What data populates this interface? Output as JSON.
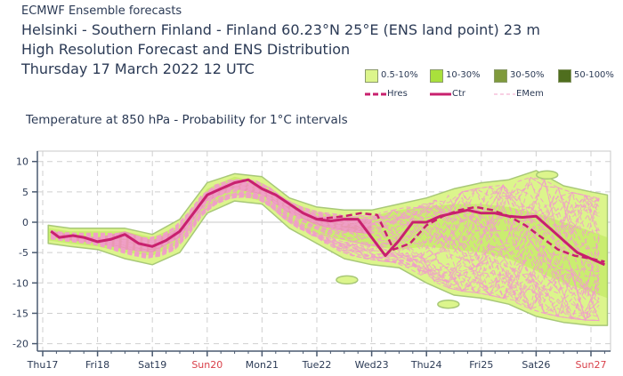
{
  "header": {
    "line0": "ECMWF Ensemble forecasts",
    "line1": "Helsinki - Southern Finland - Finland 60.23°N 25°E (ENS land point) 23 m",
    "line2": "High Resolution Forecast and ENS Distribution",
    "line3": "Thursday 17 March 2022 12 UTC"
  },
  "legend": {
    "bands": [
      {
        "label": "0.5-10%",
        "color": "#dcf58c"
      },
      {
        "label": "10-30%",
        "color": "#a9e03c"
      },
      {
        "label": "30-50%",
        "color": "#7f9a3c"
      },
      {
        "label": "50-100%",
        "color": "#4f6e1e"
      }
    ],
    "lines": [
      {
        "label": "Hres",
        "color": "#c8206e",
        "style": "dashed-thick"
      },
      {
        "label": "Ctr",
        "color": "#c8206e",
        "style": "solid-thick"
      },
      {
        "label": "EMem",
        "color": "#f0a0c8",
        "style": "dashed-thin"
      }
    ]
  },
  "chart_data": {
    "type": "line",
    "title": "Temperature at 850 hPa - Probability for 1°C intervals",
    "xlabel": "",
    "ylabel": "",
    "ylim": [
      -20,
      10
    ],
    "yticks": [
      10,
      5,
      0,
      -5,
      -10,
      -15,
      -20
    ],
    "xlim_days": [
      0,
      10.3
    ],
    "x_tick_labels": [
      {
        "label": "Thu17",
        "day": 0,
        "weekend": false
      },
      {
        "label": "Fri18",
        "day": 1,
        "weekend": false
      },
      {
        "label": "Sat19",
        "day": 2,
        "weekend": false
      },
      {
        "label": "Sun20",
        "day": 3,
        "weekend": true
      },
      {
        "label": "Mon21",
        "day": 4,
        "weekend": false
      },
      {
        "label": "Tue22",
        "day": 5,
        "weekend": false
      },
      {
        "label": "Wed23",
        "day": 6,
        "weekend": false
      },
      {
        "label": "Thu24",
        "day": 7,
        "weekend": false
      },
      {
        "label": "Fri25",
        "day": 8,
        "weekend": false
      },
      {
        "label": "Sat26",
        "day": 9,
        "weekend": false
      },
      {
        "label": "Sun27",
        "day": 10,
        "weekend": true
      }
    ],
    "grid": true,
    "colors": {
      "weekday": "#2b3a55",
      "weekend": "#d9404a",
      "accent": "#c8206e",
      "emem": "#f0a0c8",
      "band_light": "#dcf58c",
      "band_mid": "#a9e03c",
      "band_core": "#ee88c0"
    },
    "series": [
      {
        "name": "Ctr",
        "x_days": [
          0.15,
          0.3,
          0.55,
          0.75,
          1.0,
          1.25,
          1.5,
          1.75,
          2.0,
          2.25,
          2.5,
          2.75,
          3.0,
          3.25,
          3.5,
          3.75,
          4.0,
          4.25,
          4.5,
          4.75,
          5.0,
          5.25,
          5.5,
          5.75,
          6.0,
          6.25,
          6.5,
          6.75,
          7.0,
          7.25,
          7.5,
          7.75,
          8.0,
          8.25,
          8.5,
          8.75,
          9.0,
          9.25,
          9.5,
          9.75,
          10.0,
          10.25
        ],
        "values": [
          -1.5,
          -2.5,
          -2.2,
          -2.5,
          -3.2,
          -2.8,
          -2.0,
          -3.5,
          -4.0,
          -3.0,
          -1.5,
          1.5,
          4.5,
          5.5,
          6.5,
          7.0,
          5.5,
          4.5,
          3.0,
          1.5,
          0.5,
          0.2,
          0.5,
          0.5,
          -2.5,
          -5.5,
          -3.0,
          0.0,
          0.0,
          1.0,
          1.5,
          2.0,
          1.5,
          1.5,
          1.0,
          0.8,
          1.0,
          -1.0,
          -3.0,
          -5.0,
          -6.0,
          -7.0
        ]
      },
      {
        "name": "Hres",
        "x_days": [
          5.0,
          5.5,
          5.8,
          6.1,
          6.4,
          6.7,
          7.0,
          7.3,
          7.6,
          7.9,
          8.2,
          8.5,
          8.8,
          9.1,
          9.4,
          9.7,
          10.0,
          10.25
        ],
        "values": [
          0.5,
          1.0,
          1.5,
          1.2,
          -4.5,
          -3.5,
          -0.5,
          1.0,
          2.0,
          2.5,
          2.0,
          1.0,
          -0.5,
          -2.5,
          -4.5,
          -5.5,
          -6.0,
          -6.5
        ]
      }
    ],
    "envelope_0_5_10pct": {
      "x_days": [
        0.1,
        0.5,
        1.0,
        1.5,
        2.0,
        2.5,
        3.0,
        3.5,
        4.0,
        4.5,
        5.0,
        5.5,
        6.0,
        6.5,
        7.0,
        7.5,
        8.0,
        8.5,
        9.0,
        9.5,
        10.0,
        10.3
      ],
      "upper": [
        -0.5,
        -1.0,
        -1.0,
        -1.0,
        -2.0,
        0.5,
        6.5,
        8.0,
        7.5,
        4.0,
        2.5,
        2.0,
        2.0,
        3.0,
        4.0,
        5.5,
        6.5,
        7.0,
        8.5,
        6.0,
        5.0,
        4.5
      ],
      "lower": [
        -3.5,
        -4.0,
        -4.5,
        -6.0,
        -7.0,
        -5.0,
        1.5,
        3.5,
        3.0,
        -1.0,
        -3.5,
        -6.0,
        -7.0,
        -7.5,
        -10.0,
        -12.0,
        -12.5,
        -13.5,
        -15.5,
        -16.5,
        -17.0,
        -17.0
      ]
    },
    "envelope_10_30pct": {
      "x_days": [
        0.1,
        0.5,
        1.0,
        1.5,
        2.0,
        2.5,
        3.0,
        3.5,
        4.0,
        4.5,
        5.0,
        5.5,
        6.0,
        6.5,
        7.0,
        7.5,
        8.0,
        8.5,
        9.0,
        9.5,
        10.0,
        10.3
      ],
      "upper": [
        -1.0,
        -1.5,
        -1.5,
        -1.5,
        -2.5,
        -0.5,
        5.5,
        7.5,
        6.5,
        3.5,
        1.5,
        1.0,
        1.0,
        2.0,
        2.5,
        3.0,
        3.0,
        2.5,
        1.5,
        0.0,
        -1.5,
        -2.5
      ],
      "lower": [
        -3.0,
        -3.5,
        -4.0,
        -5.0,
        -5.5,
        -3.5,
        2.5,
        4.5,
        3.5,
        0.0,
        -2.0,
        -3.0,
        -4.0,
        -4.5,
        -4.0,
        -4.5,
        -5.0,
        -6.0,
        -8.0,
        -10.0,
        -11.5,
        -12.5
      ]
    },
    "envelope_core": {
      "x_days": [
        0.2,
        0.5,
        1.0,
        1.5,
        2.0,
        2.5,
        3.0,
        3.5,
        4.0,
        4.5,
        5.0,
        5.5,
        6.0
      ],
      "upper": [
        -1.5,
        -2.0,
        -2.5,
        -1.5,
        -3.0,
        -1.0,
        5.0,
        7.0,
        6.0,
        3.0,
        1.0,
        0.8,
        0.5
      ],
      "lower": [
        -2.5,
        -3.0,
        -3.5,
        -4.5,
        -5.0,
        -2.5,
        3.5,
        5.5,
        4.5,
        1.5,
        -0.5,
        -1.5,
        -2.0
      ]
    },
    "isolated_blobs": [
      {
        "x_day": 5.55,
        "value": -9.5
      },
      {
        "x_day": 9.2,
        "value": 7.8
      },
      {
        "x_day": 7.4,
        "value": -13.5
      }
    ]
  }
}
